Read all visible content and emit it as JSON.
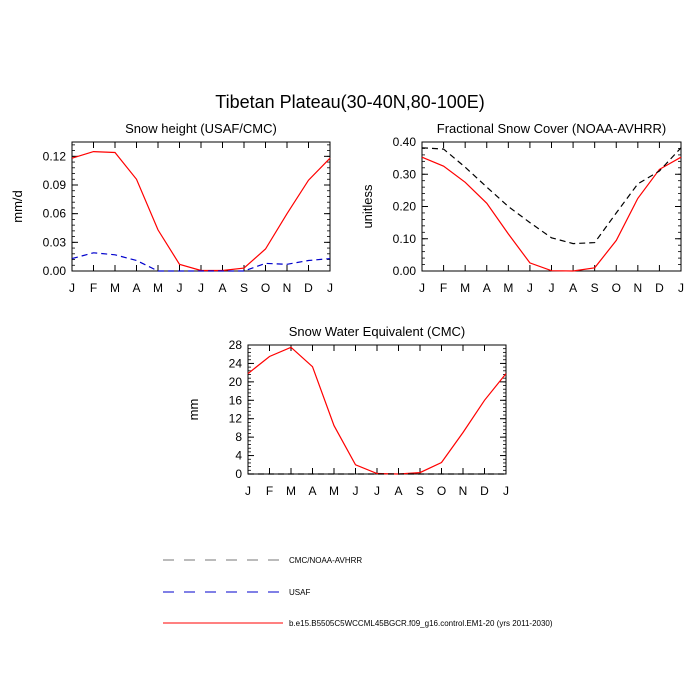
{
  "figure": {
    "title": "Tibetan Plateau(30-40N,80-100E)"
  },
  "colors": {
    "model": "#ff0000",
    "usaf": "#0000cc",
    "cmc_noaa": "#000000",
    "legend_grey": "#777777"
  },
  "legend": {
    "items": [
      {
        "label": "CMC/NOAA-AVHRR",
        "style": "dashed",
        "color": "#777777"
      },
      {
        "label": "USAF",
        "style": "dashed",
        "color": "#0000cc"
      },
      {
        "label": "b.e15.B5505C5WCCML45BGCR.f09_g16.control.EM1-20 (yrs 2011-2030)",
        "style": "solid",
        "color": "#ff0000"
      }
    ]
  },
  "chart_data": [
    {
      "type": "line",
      "title": "Snow height (USAF/CMC)",
      "xlabel": "",
      "ylabel": "mm/d",
      "categories": [
        "J",
        "F",
        "M",
        "A",
        "M",
        "J",
        "J",
        "A",
        "S",
        "O",
        "N",
        "D",
        "J"
      ],
      "ylim": [
        0,
        0.135
      ],
      "yticks": [
        0.0,
        0.03,
        0.06,
        0.09,
        0.12
      ],
      "ytick_labels": [
        "0.00",
        "0.03",
        "0.06",
        "0.09",
        "0.12"
      ],
      "series": [
        {
          "values": [
            0.118,
            0.125,
            0.124,
            0.096,
            0.043,
            0.007,
            0.0005,
            0.0005,
            0.003,
            0.023,
            0.06,
            0.095,
            0.118
          ],
          "color": "#ff0000",
          "style": "solid"
        },
        {
          "values": [
            0.013,
            0.019,
            0.017,
            0.011,
            0.0,
            0.0,
            0.0,
            0.0,
            0.0,
            0.008,
            0.007,
            0.011,
            0.013
          ],
          "color": "#0000cc",
          "style": "dashed"
        }
      ]
    },
    {
      "type": "line",
      "title": "Fractional Snow Cover (NOAA-AVHRR)",
      "xlabel": "",
      "ylabel": "unitless",
      "categories": [
        "J",
        "F",
        "M",
        "A",
        "M",
        "J",
        "J",
        "A",
        "S",
        "O",
        "N",
        "D",
        "J"
      ],
      "ylim": [
        0,
        0.4
      ],
      "yticks": [
        0.0,
        0.1,
        0.2,
        0.3,
        0.4
      ],
      "ytick_labels": [
        "0.00",
        "0.10",
        "0.20",
        "0.30",
        "0.40"
      ],
      "series": [
        {
          "values": [
            0.353,
            0.325,
            0.275,
            0.21,
            0.115,
            0.025,
            0.001,
            0.0,
            0.01,
            0.095,
            0.225,
            0.315,
            0.353
          ],
          "color": "#ff0000",
          "style": "solid"
        },
        {
          "values": [
            0.382,
            0.378,
            0.322,
            0.26,
            0.2,
            0.15,
            0.103,
            0.085,
            0.088,
            0.18,
            0.27,
            0.31,
            0.382
          ],
          "color": "#000000",
          "style": "dashed"
        }
      ]
    },
    {
      "type": "line",
      "title": "Snow Water Equivalent (CMC)",
      "xlabel": "",
      "ylabel": "mm",
      "categories": [
        "J",
        "F",
        "M",
        "A",
        "M",
        "J",
        "J",
        "A",
        "S",
        "O",
        "N",
        "D",
        "J"
      ],
      "ylim": [
        0,
        28
      ],
      "yticks": [
        0,
        4,
        8,
        12,
        16,
        20,
        24,
        28
      ],
      "ytick_labels": [
        "0",
        "4",
        "8",
        "12",
        "16",
        "20",
        "24",
        "28"
      ],
      "series": [
        {
          "values": [
            21.8,
            25.5,
            27.5,
            23.3,
            10.5,
            2.0,
            0.1,
            0.0,
            0.3,
            2.5,
            9.0,
            16.0,
            21.8
          ],
          "color": "#ff0000",
          "style": "solid"
        },
        {
          "values": [
            0,
            0,
            0,
            0,
            0,
            0,
            0,
            0,
            0,
            0,
            0,
            0,
            0
          ],
          "color": "#000000",
          "style": "dashed"
        }
      ]
    }
  ]
}
